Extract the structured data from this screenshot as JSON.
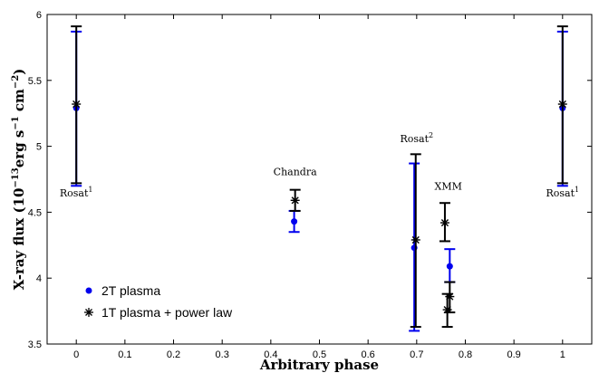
{
  "chart_data": {
    "type": "scatter",
    "xlabel": "Arbitrary phase",
    "ylabel_main": "X-ray flux (10",
    "ylabel_exp1": "−13",
    "ylabel_mid": "erg s",
    "ylabel_exp2": "−1",
    "ylabel_mid2": " cm",
    "ylabel_exp3": "−2",
    "ylabel_end": ")",
    "xlim": [
      -0.06,
      1.06
    ],
    "ylim": [
      3.5,
      6.0
    ],
    "xticks": [
      "0",
      "0.1",
      "0.2",
      "0.3",
      "0.4",
      "0.5",
      "0.6",
      "0.7",
      "0.8",
      "0.9",
      "1"
    ],
    "yticks": [
      "3.5",
      "4",
      "4.5",
      "5",
      "5.5",
      "6"
    ],
    "legend_position": "bottom-left",
    "colors": {
      "series_2t": "#0000ee",
      "series_1t": "#000000"
    },
    "series": [
      {
        "name": "2T plasma",
        "marker": "dot",
        "points": [
          {
            "x": 0.0,
            "y": 5.29,
            "ylo": 4.7,
            "yhi": 5.87
          },
          {
            "x": 0.448,
            "y": 4.43,
            "ylo": 4.35,
            "yhi": 4.51
          },
          {
            "x": 0.695,
            "y": 4.23,
            "ylo": 3.6,
            "yhi": 4.87
          },
          {
            "x": 0.768,
            "y": 4.09,
            "ylo": 3.97,
            "yhi": 4.22
          },
          {
            "x": 1.0,
            "y": 5.29,
            "ylo": 4.7,
            "yhi": 5.87
          }
        ]
      },
      {
        "name": "1T plasma + power law",
        "marker": "asterisk",
        "points": [
          {
            "x": 0.0,
            "y": 5.32,
            "ylo": 4.72,
            "yhi": 5.91
          },
          {
            "x": 0.45,
            "y": 4.59,
            "ylo": 4.51,
            "yhi": 4.67
          },
          {
            "x": 0.698,
            "y": 4.29,
            "ylo": 3.63,
            "yhi": 4.94
          },
          {
            "x": 0.758,
            "y": 4.42,
            "ylo": 4.28,
            "yhi": 4.57
          },
          {
            "x": 0.768,
            "y": 3.86,
            "ylo": 3.74,
            "yhi": 3.97
          },
          {
            "x": 0.763,
            "y": 3.76,
            "ylo": 3.63,
            "yhi": 3.88
          },
          {
            "x": 1.0,
            "y": 5.32,
            "ylo": 4.72,
            "yhi": 5.91
          }
        ]
      }
    ],
    "annotations": [
      {
        "text": "Rosat",
        "sup": "1",
        "x": 0.0,
        "y": 4.62
      },
      {
        "text": "Chandra",
        "sup": "",
        "x": 0.45,
        "y": 4.78
      },
      {
        "text": "Rosat",
        "sup": "2",
        "x": 0.7,
        "y": 5.03
      },
      {
        "text": "XMM",
        "sup": "",
        "x": 0.765,
        "y": 4.67
      },
      {
        "text": "Rosat",
        "sup": "1",
        "x": 1.0,
        "y": 4.62
      }
    ]
  }
}
